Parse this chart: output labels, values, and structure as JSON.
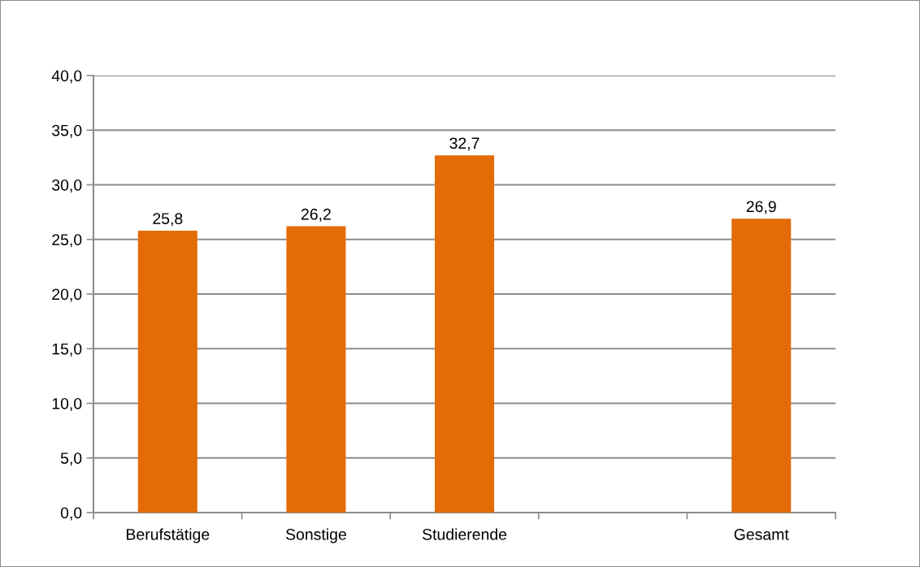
{
  "chart_data": {
    "type": "bar",
    "categories": [
      "Berufstätige",
      "Sonstige",
      "Studierende",
      null,
      "Gesamt"
    ],
    "values": [
      25.8,
      26.2,
      32.7,
      null,
      26.9
    ],
    "value_labels": [
      "25,8",
      "26,2",
      "32,7",
      null,
      "26,9"
    ],
    "color": "#e36c09",
    "ylim": [
      0,
      40
    ],
    "yticks": [
      {
        "value": 0,
        "label": "0,0"
      },
      {
        "value": 5,
        "label": "5,0"
      },
      {
        "value": 10,
        "label": "10,0"
      },
      {
        "value": 15,
        "label": "15,0"
      },
      {
        "value": 20,
        "label": "20,0"
      },
      {
        "value": 25,
        "label": "25,0"
      },
      {
        "value": 30,
        "label": "30,0"
      },
      {
        "value": 35,
        "label": "35,0"
      },
      {
        "value": 40,
        "label": "40,0"
      }
    ],
    "grid": "y"
  }
}
